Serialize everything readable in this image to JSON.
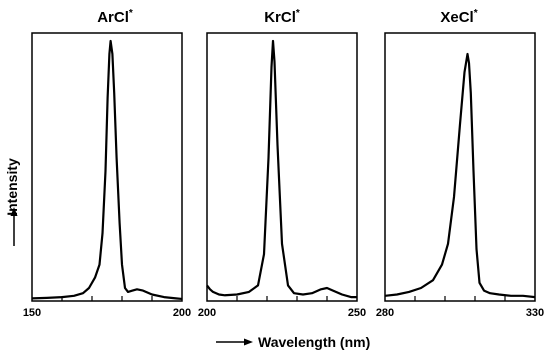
{
  "figure": {
    "xlabel": "Wavelength (nm)",
    "ylabel": "Intensity"
  },
  "chart_data": [
    {
      "type": "line",
      "title": "ArCl*",
      "title_main": "ArCl",
      "title_sup": "*",
      "xlabel": "Wavelength (nm)",
      "ylabel": "Intensity",
      "xlim": [
        150,
        200
      ],
      "ylim": [
        0,
        1
      ],
      "xtick_labels": [
        "150",
        "200"
      ],
      "grid": false,
      "series": [
        {
          "x": [
            150,
            155,
            160,
            164,
            167,
            169,
            171,
            172.5,
            173.5,
            174.5,
            175.2,
            175.8,
            176.2,
            176.8,
            177.4,
            178.2,
            179.2,
            180,
            181,
            182,
            183.5,
            185,
            187,
            190,
            194,
            198,
            200
          ],
          "y": [
            0.01,
            0.012,
            0.015,
            0.02,
            0.03,
            0.05,
            0.09,
            0.14,
            0.26,
            0.5,
            0.78,
            0.95,
            1.0,
            0.95,
            0.8,
            0.55,
            0.3,
            0.14,
            0.05,
            0.035,
            0.04,
            0.045,
            0.04,
            0.025,
            0.015,
            0.01,
            0.008
          ]
        }
      ]
    },
    {
      "type": "line",
      "title": "KrCl*",
      "title_main": "KrCl",
      "title_sup": "*",
      "xlabel": "Wavelength (nm)",
      "ylabel": "Intensity",
      "xlim": [
        200,
        250
      ],
      "ylim": [
        0,
        1
      ],
      "xtick_labels": [
        "200",
        "250"
      ],
      "grid": false,
      "series": [
        {
          "x": [
            200,
            201,
            202,
            204,
            206,
            210,
            214,
            217,
            219,
            220.5,
            221.5,
            222,
            222.5,
            223.5,
            225,
            227,
            229,
            232,
            235,
            238,
            240,
            242,
            245,
            248,
            250
          ],
          "y": [
            0.06,
            0.045,
            0.035,
            0.025,
            0.022,
            0.025,
            0.035,
            0.06,
            0.18,
            0.55,
            0.9,
            1.0,
            0.92,
            0.6,
            0.22,
            0.06,
            0.03,
            0.025,
            0.03,
            0.045,
            0.05,
            0.04,
            0.025,
            0.015,
            0.015
          ]
        }
      ]
    },
    {
      "type": "line",
      "title": "XeCl*",
      "title_main": "XeCl",
      "title_sup": "*",
      "xlabel": "Wavelength (nm)",
      "ylabel": "Intensity",
      "xlim": [
        280,
        330
      ],
      "ylim": [
        0,
        1
      ],
      "xtick_labels": [
        "280",
        "330"
      ],
      "grid": false,
      "series": [
        {
          "x": [
            280,
            284,
            288,
            292,
            296,
            299,
            301,
            303,
            305,
            306.5,
            307.5,
            308,
            308.6,
            309.5,
            310.5,
            311.5,
            313,
            315,
            318,
            322,
            326,
            330
          ],
          "y": [
            0.02,
            0.025,
            0.035,
            0.05,
            0.08,
            0.14,
            0.22,
            0.4,
            0.68,
            0.88,
            0.95,
            0.915,
            0.8,
            0.5,
            0.2,
            0.07,
            0.04,
            0.03,
            0.025,
            0.02,
            0.02,
            0.015
          ]
        }
      ]
    }
  ]
}
